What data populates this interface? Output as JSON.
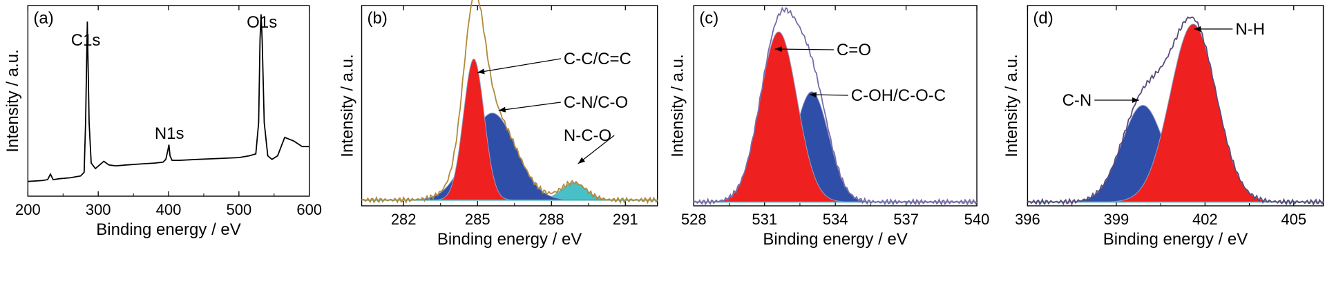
{
  "figure": {
    "panels": [
      {
        "label": "(a)"
      },
      {
        "label": "(b)"
      },
      {
        "label": "(c)"
      },
      {
        "label": "(d)"
      }
    ]
  },
  "chart_data": [
    {
      "type": "line",
      "panel": "(a)",
      "xlabel": "Binding energy / eV",
      "ylabel": "Intensity / a.u.",
      "xlim": [
        200,
        600
      ],
      "ylim": [
        0,
        100
      ],
      "xticks": [
        200,
        300,
        400,
        500,
        600
      ],
      "yticks_shown": false,
      "series": [
        {
          "color": "#000000",
          "x": [
            200,
            220,
            228,
            232,
            236,
            245,
            260,
            275,
            280,
            282,
            284.5,
            287,
            290,
            296,
            302,
            308,
            315,
            325,
            340,
            360,
            380,
            392,
            396,
            399,
            400.5,
            402,
            405,
            415,
            440,
            470,
            500,
            515,
            524,
            528,
            530,
            531.5,
            533,
            536,
            541,
            547,
            555,
            565,
            578,
            590,
            600
          ],
          "y": [
            8,
            8.5,
            9,
            12,
            9,
            9.5,
            10,
            11,
            13,
            40,
            95,
            40,
            18,
            15,
            17,
            19,
            17,
            16.5,
            17,
            17.5,
            18,
            18.5,
            20,
            25,
            28,
            22,
            19.5,
            19.5,
            20,
            20.5,
            21,
            22,
            23,
            40,
            85,
            99,
            85,
            40,
            22,
            20,
            22,
            32,
            30,
            27,
            27
          ]
        }
      ],
      "annotations": [
        {
          "text": "C1s",
          "x": 284.5
        },
        {
          "text": "N1s",
          "x": 400.5
        },
        {
          "text": "O1s",
          "x": 531.5
        }
      ]
    },
    {
      "type": "area",
      "panel": "(b)",
      "xlabel": "Binding energy / eV",
      "ylabel": "Intensity / a.u.",
      "xlim": [
        280.3,
        292.3
      ],
      "ylim": [
        0,
        100
      ],
      "xticks": [
        282,
        285,
        288,
        291
      ],
      "yticks_shown": false,
      "baseline": 3,
      "envelope_color": "#b08a3a",
      "peaks": [
        {
          "name": "C-C/C=C",
          "center": 284.85,
          "sigma": 0.42,
          "height": 73,
          "color": "#ee2020"
        },
        {
          "name": "C-N/C-O",
          "center": 285.6,
          "sigma": 0.95,
          "height": 45,
          "color": "#2f4ea8"
        },
        {
          "name": "N-C-O",
          "center": 288.9,
          "sigma": 0.5,
          "height": 9,
          "color": "#48c0c8"
        }
      ]
    },
    {
      "type": "area",
      "panel": "(c)",
      "xlabel": "Binding energy / eV",
      "ylabel": "Intensity / a.u.",
      "xlim": [
        528,
        540
      ],
      "ylim": [
        0,
        100
      ],
      "xticks": [
        528,
        531,
        534,
        537,
        540
      ],
      "yticks_shown": false,
      "baseline": 2,
      "envelope_color": "#7a6aa8",
      "peaks": [
        {
          "name": "C=O",
          "center": 531.6,
          "sigma": 0.78,
          "height": 88,
          "color": "#ee2020"
        },
        {
          "name": "C-OH/C-O-C",
          "center": 533.0,
          "sigma": 0.72,
          "height": 57,
          "color": "#2f4ea8"
        }
      ]
    },
    {
      "type": "area",
      "panel": "(d)",
      "xlabel": "Binding energy / eV",
      "ylabel": "Intensity / a.u.",
      "xlim": [
        396,
        406
      ],
      "ylim": [
        0,
        100
      ],
      "xticks": [
        396,
        399,
        402,
        405
      ],
      "yticks_shown": false,
      "baseline": 2,
      "envelope_color": "#5a4a78",
      "peaks": [
        {
          "name": "N-H",
          "center": 401.6,
          "sigma": 0.78,
          "height": 92,
          "color": "#ee2020"
        },
        {
          "name": "C-N",
          "center": 399.9,
          "sigma": 0.72,
          "height": 50,
          "color": "#2f4ea8"
        }
      ]
    }
  ]
}
